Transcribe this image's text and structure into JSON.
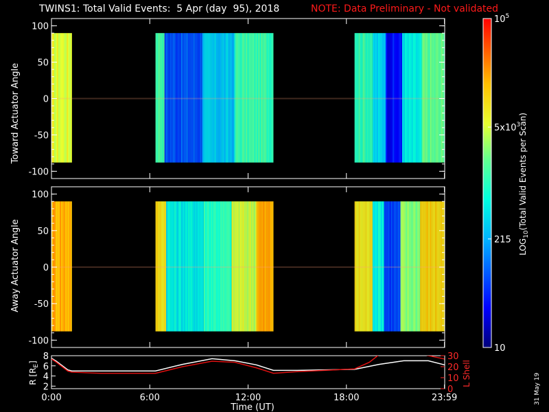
{
  "header": {
    "title": "TWINS1: Total Valid Events:  5 Apr (day  95), 2018",
    "note": "NOTE: Data Preliminary - Not validated",
    "note_color": "#ff1a1a"
  },
  "date_stamp": "31 May 19",
  "chart_data": [
    {
      "type": "heatmap",
      "ylabel": "Toward Actuator Angle",
      "ylim": [
        -110,
        110
      ],
      "yticks": [
        100,
        50,
        0,
        -50,
        -100
      ],
      "angle_coverage": [
        -88,
        90
      ],
      "bands": [
        {
          "start_hour": 0.0,
          "end_hour": 1.25,
          "level": 0.68
        },
        {
          "start_hour": 6.35,
          "end_hour": 6.9,
          "level": 0.55
        },
        {
          "start_hour": 6.9,
          "end_hour": 9.2,
          "level": 0.22
        },
        {
          "start_hour": 9.2,
          "end_hour": 11.2,
          "level": 0.36
        },
        {
          "start_hour": 11.2,
          "end_hour": 13.55,
          "level": 0.52
        },
        {
          "start_hour": 18.5,
          "end_hour": 19.6,
          "level": 0.52
        },
        {
          "start_hour": 19.6,
          "end_hour": 20.4,
          "level": 0.38
        },
        {
          "start_hour": 20.4,
          "end_hour": 21.4,
          "level": 0.13
        },
        {
          "start_hour": 21.4,
          "end_hour": 22.6,
          "level": 0.42
        },
        {
          "start_hour": 22.6,
          "end_hour": 24.0,
          "level": 0.56
        }
      ]
    },
    {
      "type": "heatmap",
      "ylabel": "Away Actuator Angle",
      "ylim": [
        -110,
        110
      ],
      "yticks": [
        100,
        50,
        0,
        -50,
        -100
      ],
      "angle_coverage": [
        -88,
        90
      ],
      "bands": [
        {
          "start_hour": 0.0,
          "end_hour": 1.25,
          "level": 0.82
        },
        {
          "start_hour": 6.35,
          "end_hour": 7.0,
          "level": 0.74
        },
        {
          "start_hour": 7.0,
          "end_hour": 9.3,
          "level": 0.43
        },
        {
          "start_hour": 9.3,
          "end_hour": 11.0,
          "level": 0.5
        },
        {
          "start_hour": 11.0,
          "end_hour": 12.5,
          "level": 0.66
        },
        {
          "start_hour": 12.5,
          "end_hour": 13.55,
          "level": 0.82
        },
        {
          "start_hour": 18.5,
          "end_hour": 19.6,
          "level": 0.72
        },
        {
          "start_hour": 19.6,
          "end_hour": 20.3,
          "level": 0.45
        },
        {
          "start_hour": 20.3,
          "end_hour": 21.3,
          "level": 0.2
        },
        {
          "start_hour": 21.3,
          "end_hour": 22.5,
          "level": 0.6
        },
        {
          "start_hour": 22.5,
          "end_hour": 24.0,
          "level": 0.76
        }
      ]
    },
    {
      "type": "line",
      "xlabel": "Time (UT)",
      "xlim": [
        0,
        24
      ],
      "xticks": [
        "0:00",
        "6:00",
        "12:00",
        "18:00",
        "23:59"
      ],
      "xtick_hours": [
        0,
        6,
        12,
        18,
        23.983
      ],
      "left_axis": {
        "label": "R [R",
        "label_sub": "E",
        "label_end": "]",
        "ylim": [
          1.5,
          8
        ],
        "ticks": [
          2,
          4,
          6,
          8
        ]
      },
      "right_axis": {
        "label": "L Shell",
        "ylim": [
          0,
          30
        ],
        "ticks": [
          0,
          10,
          20,
          30
        ],
        "color": "#ff2a2a"
      },
      "series": [
        {
          "axis": "left",
          "color": "#ffffff",
          "x": [
            0,
            0.3,
            1.0,
            1.25,
            3.0,
            6.35,
            8.0,
            9.8,
            11.2,
            12.5,
            13.55,
            15.0,
            18.5,
            20.0,
            21.5,
            23.0,
            23.983
          ],
          "y": [
            7.5,
            6.9,
            5.2,
            5.0,
            5.0,
            5.0,
            6.3,
            7.4,
            7.0,
            6.2,
            5.1,
            5.1,
            5.3,
            6.3,
            7.0,
            7.0,
            6.2
          ]
        },
        {
          "axis": "right",
          "color": "#e01010",
          "x": [
            0,
            0.3,
            1.0,
            1.25,
            3.0,
            6.35,
            8.0,
            9.8,
            11.2,
            12.5,
            13.55,
            15.0,
            18.5,
            19.4,
            20.0
          ],
          "y": [
            27,
            24,
            16,
            15,
            14,
            14,
            20,
            25,
            24,
            19,
            14,
            15.5,
            18,
            24,
            31
          ]
        },
        {
          "axis": "right",
          "color": "#e01010",
          "x": [
            22.7,
            23.983
          ],
          "y": [
            31,
            27
          ]
        }
      ]
    }
  ],
  "colorbar": {
    "label": "LOG",
    "label_sub": "10",
    "label_end": "(Total Valid Events per Scan)",
    "ticks": [
      {
        "value": "10",
        "frac": 0.0
      },
      {
        "value": "215",
        "frac": 0.33
      },
      {
        "value_main": "5x10",
        "value_sup": "3",
        "frac": 0.67
      },
      {
        "value_main": "10",
        "value_sup": "5",
        "frac": 1.0
      }
    ]
  }
}
